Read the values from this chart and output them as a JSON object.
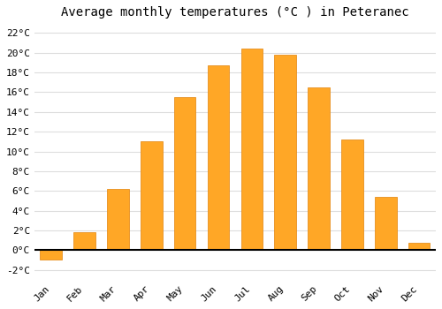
{
  "months": [
    "Jan",
    "Feb",
    "Mar",
    "Apr",
    "May",
    "Jun",
    "Jul",
    "Aug",
    "Sep",
    "Oct",
    "Nov",
    "Dec"
  ],
  "values": [
    -1.0,
    1.8,
    6.2,
    11.0,
    15.5,
    18.7,
    20.4,
    19.8,
    16.5,
    11.2,
    5.4,
    0.7
  ],
  "bar_color": "#FFA726",
  "bar_edge_color": "#E69020",
  "title": "Average monthly temperatures (°C ) in Peteranec",
  "ylim": [
    -3,
    23
  ],
  "yticks": [
    -2,
    0,
    2,
    4,
    6,
    8,
    10,
    12,
    14,
    16,
    18,
    20,
    22
  ],
  "background_color": "#FFFFFF",
  "grid_color": "#DDDDDD",
  "title_fontsize": 10,
  "tick_fontsize": 8,
  "bar_width": 0.65
}
